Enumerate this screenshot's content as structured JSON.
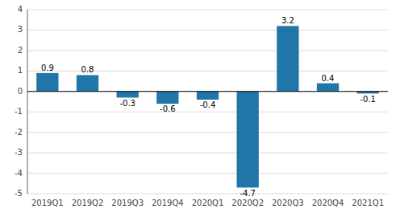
{
  "chart_data": {
    "type": "bar",
    "categories": [
      "2019Q1",
      "2019Q2",
      "2019Q3",
      "2019Q4",
      "2020Q1",
      "2020Q2",
      "2020Q3",
      "2020Q4",
      "2021Q1"
    ],
    "values": [
      0.9,
      0.8,
      -0.3,
      -0.6,
      -0.4,
      -4.7,
      3.2,
      0.4,
      -0.1
    ],
    "color": "#2076a8",
    "ylim": [
      -5,
      4
    ],
    "yticks": [
      -5,
      -4,
      -3,
      -2,
      -1,
      0,
      1,
      2,
      3,
      4
    ],
    "grid": true,
    "data_labels": true
  }
}
